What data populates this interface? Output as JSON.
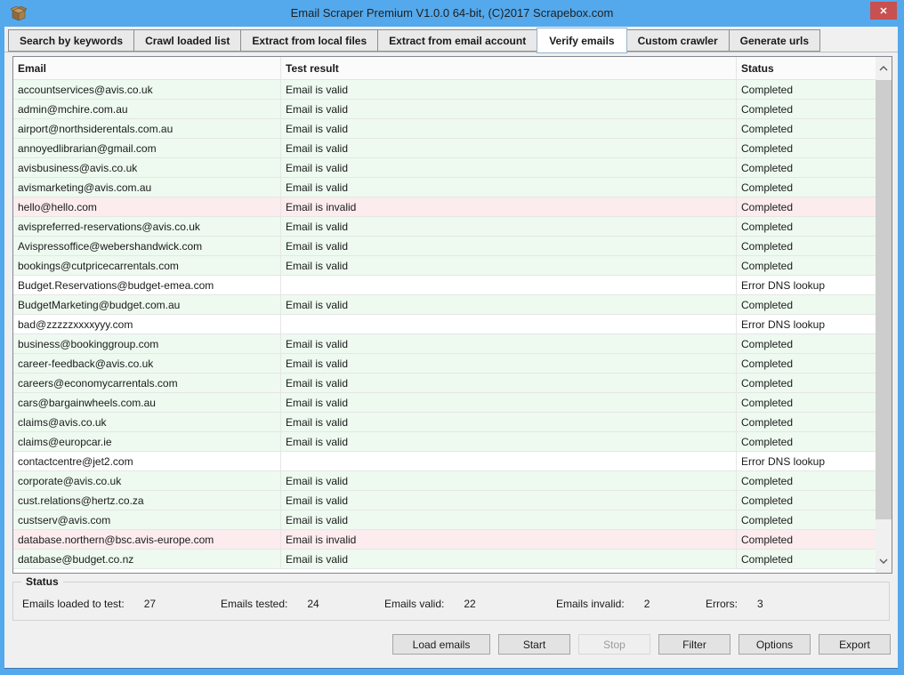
{
  "window": {
    "title": "Email Scraper Premium V1.0.0 64-bit, (C)2017 Scrapebox.com",
    "close_glyph": "✕",
    "app_icon": "box-icon"
  },
  "tabs": [
    {
      "label": "Search by keywords",
      "active": false
    },
    {
      "label": "Crawl loaded list",
      "active": false
    },
    {
      "label": "Extract from local files",
      "active": false
    },
    {
      "label": "Extract from email account",
      "active": false
    },
    {
      "label": "Verify emails",
      "active": true
    },
    {
      "label": "Custom crawler",
      "active": false
    },
    {
      "label": "Generate urls",
      "active": false
    }
  ],
  "table": {
    "columns": [
      "Email",
      "Test result",
      "Status"
    ],
    "rows": [
      {
        "email": "accountservices@avis.co.uk",
        "result": "Email is valid",
        "status": "Completed",
        "state": "valid"
      },
      {
        "email": "admin@mchire.com.au",
        "result": "Email is valid",
        "status": "Completed",
        "state": "valid"
      },
      {
        "email": "airport@northsiderentals.com.au",
        "result": "Email is valid",
        "status": "Completed",
        "state": "valid"
      },
      {
        "email": "annoyedlibrarian@gmail.com",
        "result": "Email is valid",
        "status": "Completed",
        "state": "valid"
      },
      {
        "email": "avisbusiness@avis.co.uk",
        "result": "Email is valid",
        "status": "Completed",
        "state": "valid"
      },
      {
        "email": "avismarketing@avis.com.au",
        "result": "Email is valid",
        "status": "Completed",
        "state": "valid"
      },
      {
        "email": "hello@hello.com",
        "result": "Email is invalid",
        "status": "Completed",
        "state": "invalid"
      },
      {
        "email": "avispreferred-reservations@avis.co.uk",
        "result": "Email is valid",
        "status": "Completed",
        "state": "valid"
      },
      {
        "email": "Avispressoffice@webershandwick.com",
        "result": "Email is valid",
        "status": "Completed",
        "state": "valid"
      },
      {
        "email": "bookings@cutpricecarrentals.com",
        "result": "Email is valid",
        "status": "Completed",
        "state": "valid"
      },
      {
        "email": "Budget.Reservations@budget-emea.com",
        "result": "",
        "status": "Error DNS lookup",
        "state": "error"
      },
      {
        "email": "BudgetMarketing@budget.com.au",
        "result": "Email is valid",
        "status": "Completed",
        "state": "valid"
      },
      {
        "email": "bad@zzzzzxxxxyyy.com",
        "result": "",
        "status": "Error DNS lookup",
        "state": "error"
      },
      {
        "email": "business@bookinggroup.com",
        "result": "Email is valid",
        "status": "Completed",
        "state": "valid"
      },
      {
        "email": "career-feedback@avis.co.uk",
        "result": "Email is valid",
        "status": "Completed",
        "state": "valid"
      },
      {
        "email": "careers@economycarrentals.com",
        "result": "Email is valid",
        "status": "Completed",
        "state": "valid"
      },
      {
        "email": "cars@bargainwheels.com.au",
        "result": "Email is valid",
        "status": "Completed",
        "state": "valid"
      },
      {
        "email": "claims@avis.co.uk",
        "result": "Email is valid",
        "status": "Completed",
        "state": "valid"
      },
      {
        "email": "claims@europcar.ie",
        "result": "Email is valid",
        "status": "Completed",
        "state": "valid"
      },
      {
        "email": "contactcentre@jet2.com",
        "result": "",
        "status": "Error DNS lookup",
        "state": "error"
      },
      {
        "email": "corporate@avis.co.uk",
        "result": "Email is valid",
        "status": "Completed",
        "state": "valid"
      },
      {
        "email": "cust.relations@hertz.co.za",
        "result": "Email is valid",
        "status": "Completed",
        "state": "valid"
      },
      {
        "email": "custserv@avis.com",
        "result": "Email is valid",
        "status": "Completed",
        "state": "valid"
      },
      {
        "email": "database.northern@bsc.avis-europe.com",
        "result": "Email is invalid",
        "status": "Completed",
        "state": "invalid"
      },
      {
        "email": "database@budget.co.nz",
        "result": "Email is valid",
        "status": "Completed",
        "state": "valid"
      }
    ]
  },
  "status_panel": {
    "title": "Status",
    "fields": [
      {
        "label": "Emails loaded to test:",
        "value": "27"
      },
      {
        "label": "Emails tested:",
        "value": "24"
      },
      {
        "label": "Emails valid:",
        "value": "22"
      },
      {
        "label": "Emails invalid:",
        "value": "2"
      },
      {
        "label": "Errors:",
        "value": "3"
      }
    ]
  },
  "buttons": [
    {
      "label": "Load emails",
      "enabled": true
    },
    {
      "label": "Start",
      "enabled": true
    },
    {
      "label": "Stop",
      "enabled": false
    },
    {
      "label": "Filter",
      "enabled": true
    },
    {
      "label": "Options",
      "enabled": true
    },
    {
      "label": "Export",
      "enabled": true
    }
  ],
  "colors": {
    "titlebar": "#54a9ec",
    "close_button": "#c75050",
    "row_valid": "#eefaf0",
    "row_invalid": "#fcecee",
    "row_error": "#ffffff",
    "client_bg": "#f0f0f0"
  }
}
